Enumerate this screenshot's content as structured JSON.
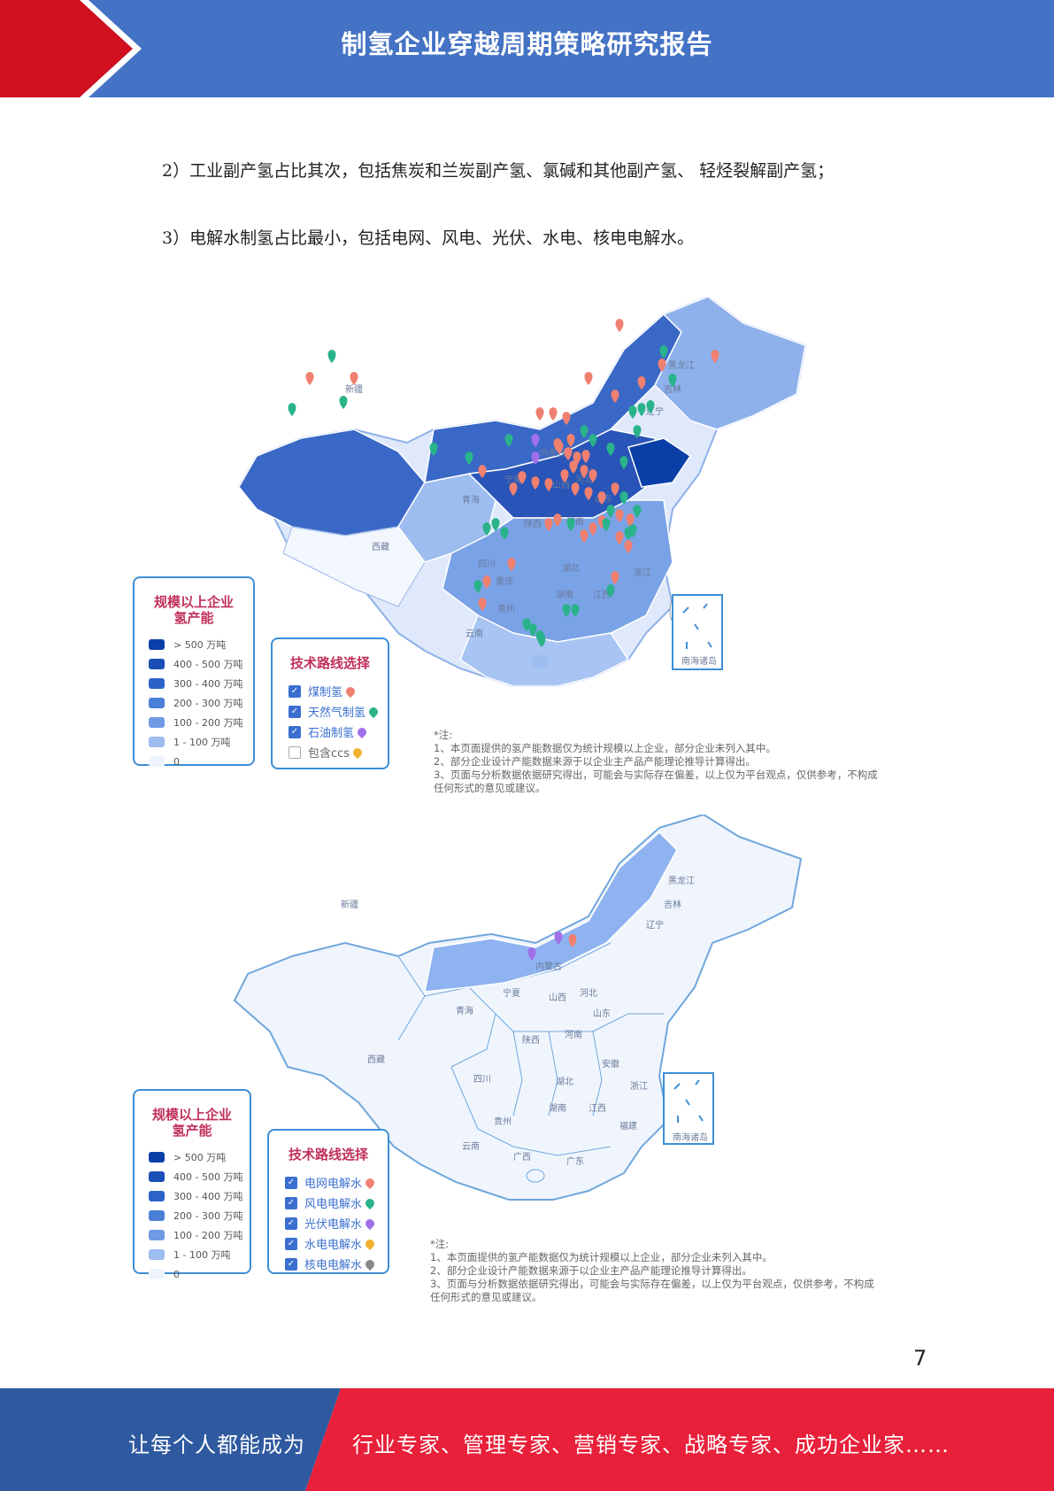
{
  "header": {
    "title": "制氢企业穿越周期策略研究报告"
  },
  "paragraphs": [
    "2）工业副产氢占比其次，包括焦炭和兰炭副产氢、氯碱和其他副产氢、 轻烃裂解副产氢；",
    "3）电解水制氢占比最小，包括电网、风电、光伏、水电、核电电解水。"
  ],
  "legend_scale": {
    "title_line1": "规模以上企业",
    "title_line2": "氢产能",
    "items": [
      {
        "label": "> 500 万吨",
        "color": "#0b3fa8"
      },
      {
        "label": "400 - 500 万吨",
        "color": "#1a4fb8"
      },
      {
        "label": "300 - 400 万吨",
        "color": "#2d63c8"
      },
      {
        "label": "200 - 300 万吨",
        "color": "#4a7fd8"
      },
      {
        "label": "100 - 200 万吨",
        "color": "#6f9ae4"
      },
      {
        "label": "1 - 100 万吨",
        "color": "#9dbcf0"
      },
      {
        "label": "0",
        "color": "#eef4fd"
      }
    ]
  },
  "map1": {
    "tech_title": "技术路线选择",
    "options": [
      {
        "label": "煤制氢",
        "checked": true,
        "pin": "#f08070"
      },
      {
        "label": "天然气制氢",
        "checked": true,
        "pin": "#2ab38a"
      },
      {
        "label": "石油制氢",
        "checked": true,
        "pin": "#a070e8"
      },
      {
        "label": "包含ccs",
        "checked": false,
        "pin": "#f0b030"
      }
    ],
    "labels": [
      "新疆",
      "西藏",
      "青海",
      "宁夏",
      "内蒙古",
      "山西",
      "陕西",
      "河南",
      "山东",
      "河北",
      "吉林",
      "辽宁",
      "黑龙江",
      "四川",
      "重庆",
      "贵州",
      "云南",
      "湖北",
      "湖南",
      "江西",
      "浙江",
      "南海诸岛"
    ]
  },
  "map2": {
    "tech_title": "技术路线选择",
    "options": [
      {
        "label": "电网电解水",
        "checked": true,
        "pin": "#f08070"
      },
      {
        "label": "风电电解水",
        "checked": true,
        "pin": "#2ab38a"
      },
      {
        "label": "光伏电解水",
        "checked": true,
        "pin": "#a070e8"
      },
      {
        "label": "水电电解水",
        "checked": true,
        "pin": "#f0b030"
      },
      {
        "label": "核电电解水",
        "checked": true,
        "pin": "#888888"
      }
    ],
    "labels": [
      "新疆",
      "西藏",
      "青海",
      "宁夏",
      "内蒙古",
      "山西",
      "河北",
      "陕西",
      "河南",
      "山东",
      "辽宁",
      "吉林",
      "黑龙江",
      "四川",
      "贵州",
      "云南",
      "广西",
      "广东",
      "湖南",
      "湖北",
      "江西",
      "安徽",
      "浙江",
      "福建",
      "南海诸岛"
    ]
  },
  "notes": [
    "*注:",
    "1、本页面提供的氢产能数据仅为统计规模以上企业，部分企业未列入其中。",
    "2、部分企业设计产能数据来源于以企业主产品产能理论推导计算得出。",
    "3、页面与分析数据依据研究得出，可能会与实际存在偏差，以上仅为平台观点，仅供参考，不构成",
    "任何形式的意见或建议。"
  ],
  "page_number": "7",
  "footer": {
    "left": "让每个人都能成为",
    "right": "行业专家、管理专家、营销专家、战略专家、成功企业家……",
    "left_color": "#2f5aa0",
    "right_color": "#e8203a"
  }
}
